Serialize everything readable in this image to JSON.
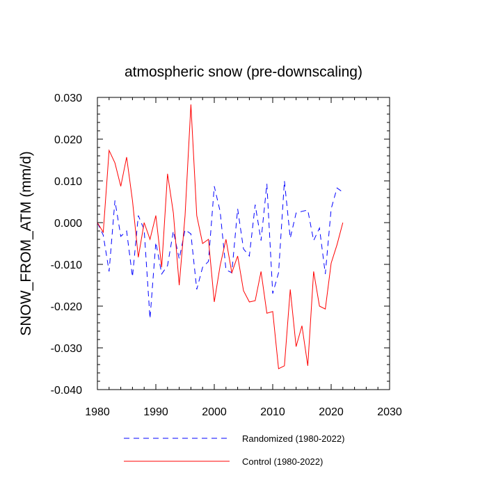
{
  "chart_data": {
    "type": "line",
    "title": "atmospheric snow (pre-downscaling)",
    "ylabel": "SNOW_FROM_ATM  (mm/d)",
    "xlabel": "",
    "xlim": [
      1980,
      2030
    ],
    "ylim": [
      -0.04,
      0.03
    ],
    "x_ticks": [
      1980,
      1990,
      2000,
      2010,
      2020,
      2030
    ],
    "x_tick_labels": [
      "1980",
      "1990",
      "2000",
      "2010",
      "2020",
      "2030"
    ],
    "y_ticks": [
      -0.04,
      -0.03,
      -0.02,
      -0.01,
      0.0,
      0.01,
      0.02,
      0.03
    ],
    "y_tick_labels": [
      "-0.040",
      "-0.030",
      "-0.020",
      "-0.010",
      "0.000",
      "0.010",
      "0.020",
      "0.030"
    ],
    "grid": false,
    "legend": "bottom",
    "x": [
      1980,
      1981,
      1982,
      1983,
      1984,
      1985,
      1986,
      1987,
      1988,
      1989,
      1990,
      1991,
      1992,
      1993,
      1994,
      1995,
      1996,
      1997,
      1998,
      1999,
      2000,
      2001,
      2002,
      2003,
      2004,
      2005,
      2006,
      2007,
      2008,
      2009,
      2010,
      2011,
      2012,
      2013,
      2014,
      2015,
      2016,
      2017,
      2018,
      2019,
      2020,
      2021,
      2022
    ],
    "series": [
      {
        "name": "Randomized (1980-2022)",
        "color": "#0000ff",
        "dash": "dashed",
        "values": [
          0.0,
          -0.003,
          -0.0117,
          0.0053,
          -0.0033,
          -0.002,
          -0.013,
          0.0017,
          -0.0017,
          -0.023,
          -0.0047,
          -0.0123,
          -0.0103,
          -0.002,
          -0.0087,
          -0.0017,
          -0.0027,
          -0.016,
          -0.0107,
          -0.0093,
          0.0087,
          0.0027,
          -0.0113,
          -0.012,
          0.0033,
          -0.0063,
          -0.008,
          0.0043,
          -0.0043,
          0.0093,
          -0.017,
          -0.012,
          0.01,
          -0.0037,
          0.0023,
          0.0027,
          0.003,
          -0.0043,
          -0.0013,
          -0.0123,
          0.0033,
          0.0083,
          0.0073
        ]
      },
      {
        "name": "Control (1980-2022)",
        "color": "#ff0000",
        "dash": "solid",
        "values": [
          0.0,
          -0.0023,
          0.0173,
          0.0143,
          0.0087,
          0.0157,
          0.0053,
          -0.0083,
          0.0,
          -0.004,
          0.0017,
          -0.0107,
          0.0117,
          0.0023,
          -0.015,
          0.0017,
          0.0283,
          0.0017,
          -0.005,
          -0.004,
          -0.019,
          -0.0103,
          -0.004,
          -0.012,
          -0.008,
          -0.0163,
          -0.019,
          -0.0187,
          -0.0117,
          -0.0217,
          -0.0213,
          -0.035,
          -0.0343,
          -0.016,
          -0.0297,
          -0.0247,
          -0.0343,
          -0.0117,
          -0.02,
          -0.0207,
          -0.0097,
          -0.0053,
          0.0
        ]
      }
    ]
  }
}
